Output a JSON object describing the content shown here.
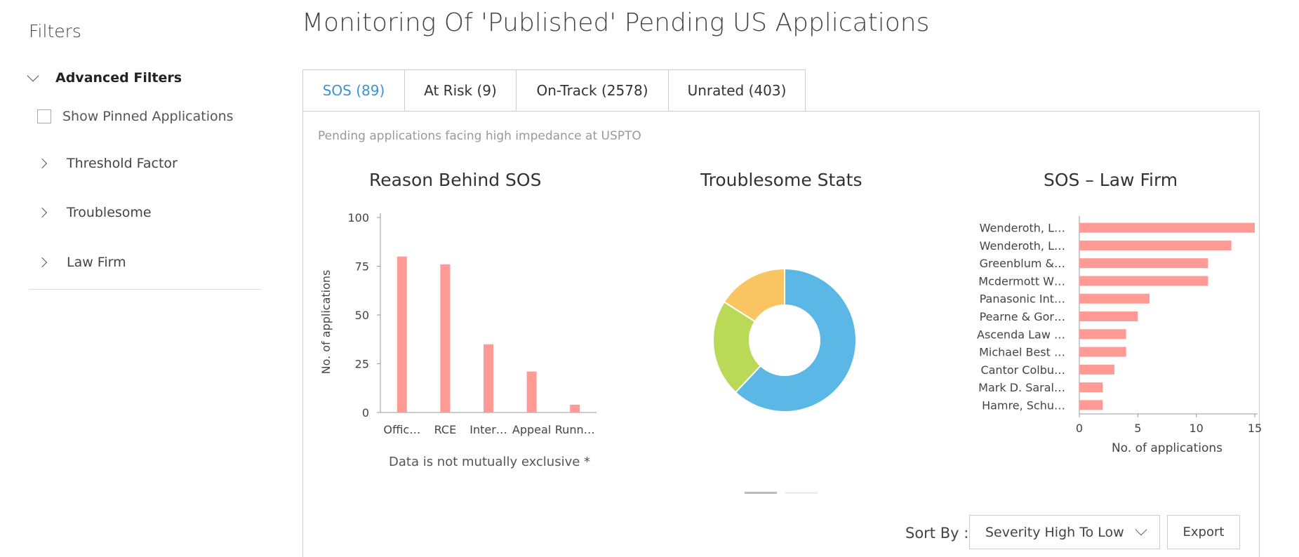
{
  "sidebar": {
    "title": "Filters",
    "advanced_label": "Advanced Filters",
    "pinned_label": "Show Pinned Applications",
    "items": [
      {
        "label": "Threshold Factor"
      },
      {
        "label": "Troublesome"
      },
      {
        "label": "Law Firm"
      }
    ]
  },
  "main": {
    "title": "Monitoring Of 'Published' Pending US Applications",
    "tabs": [
      {
        "label": "SOS (89)",
        "active": true
      },
      {
        "label": "At Risk (9)"
      },
      {
        "label": "On-Track (2578)"
      },
      {
        "label": "Unrated (403)"
      }
    ],
    "subtitle": "Pending applications facing high impedance at USPTO",
    "note": "Data is not mutually exclusive *",
    "sort_label": "Sort By :",
    "sort_value": "Severity High To Low",
    "export_label": "Export"
  },
  "colors": {
    "bar": "#ff9a94",
    "accent": "#3a94d4",
    "donut_blue": "#5bb8e6",
    "donut_green": "#b9d957",
    "donut_yellow": "#f9c462"
  },
  "chart_data": [
    {
      "type": "bar",
      "title": "Reason Behind SOS",
      "ylabel": "No. of applications",
      "xlabel": "",
      "ylim": [
        0,
        100
      ],
      "yticks": [
        0,
        25,
        50,
        75,
        100
      ],
      "categories": [
        "Offic…",
        "RCE",
        "Inter…",
        "Appeal",
        "Runn…"
      ],
      "values": [
        80,
        76,
        35,
        21,
        4
      ]
    },
    {
      "type": "pie",
      "title": "Troublesome Stats",
      "donut": true,
      "values": [
        62,
        22,
        16
      ]
    },
    {
      "type": "bar",
      "orientation": "horizontal",
      "title": "SOS – Law Firm",
      "xlabel": "No. of applications",
      "xlim": [
        0,
        15
      ],
      "xticks": [
        0,
        5,
        10,
        15
      ],
      "categories": [
        "Wenderoth, L…",
        "Wenderoth, L…",
        "Greenblum &…",
        "Mcdermott W…",
        "Panasonic Int…",
        "Pearne & Gor…",
        "Ascenda Law …",
        "Michael Best …",
        "Cantor Colbu…",
        "Mark D. Saral…",
        "Hamre, Schu…"
      ],
      "values": [
        15,
        13,
        11,
        11,
        6,
        5,
        4,
        4,
        3,
        2,
        2
      ]
    }
  ]
}
